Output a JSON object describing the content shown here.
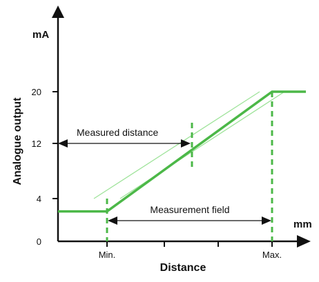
{
  "chart_data": {
    "type": "line",
    "title": "",
    "xlabel": "Distance",
    "ylabel": "Analogue output",
    "x_unit": "mm",
    "y_unit": "mA",
    "y_ticks": [
      0,
      4,
      12,
      20
    ],
    "x_ticks": [
      "Min.",
      "Max."
    ],
    "ylim": [
      0,
      28
    ],
    "grid": false,
    "series": [
      {
        "x": [
          "start",
          "Min.",
          "Max.",
          "end"
        ],
        "y": [
          4,
          4,
          20,
          20
        ]
      }
    ],
    "annotations": {
      "measured_distance": "Measured distance",
      "measurement_field": "Measurement field"
    },
    "colors": {
      "line": "#4cb848",
      "band": "#9ee39a",
      "axis": "#111111"
    }
  }
}
